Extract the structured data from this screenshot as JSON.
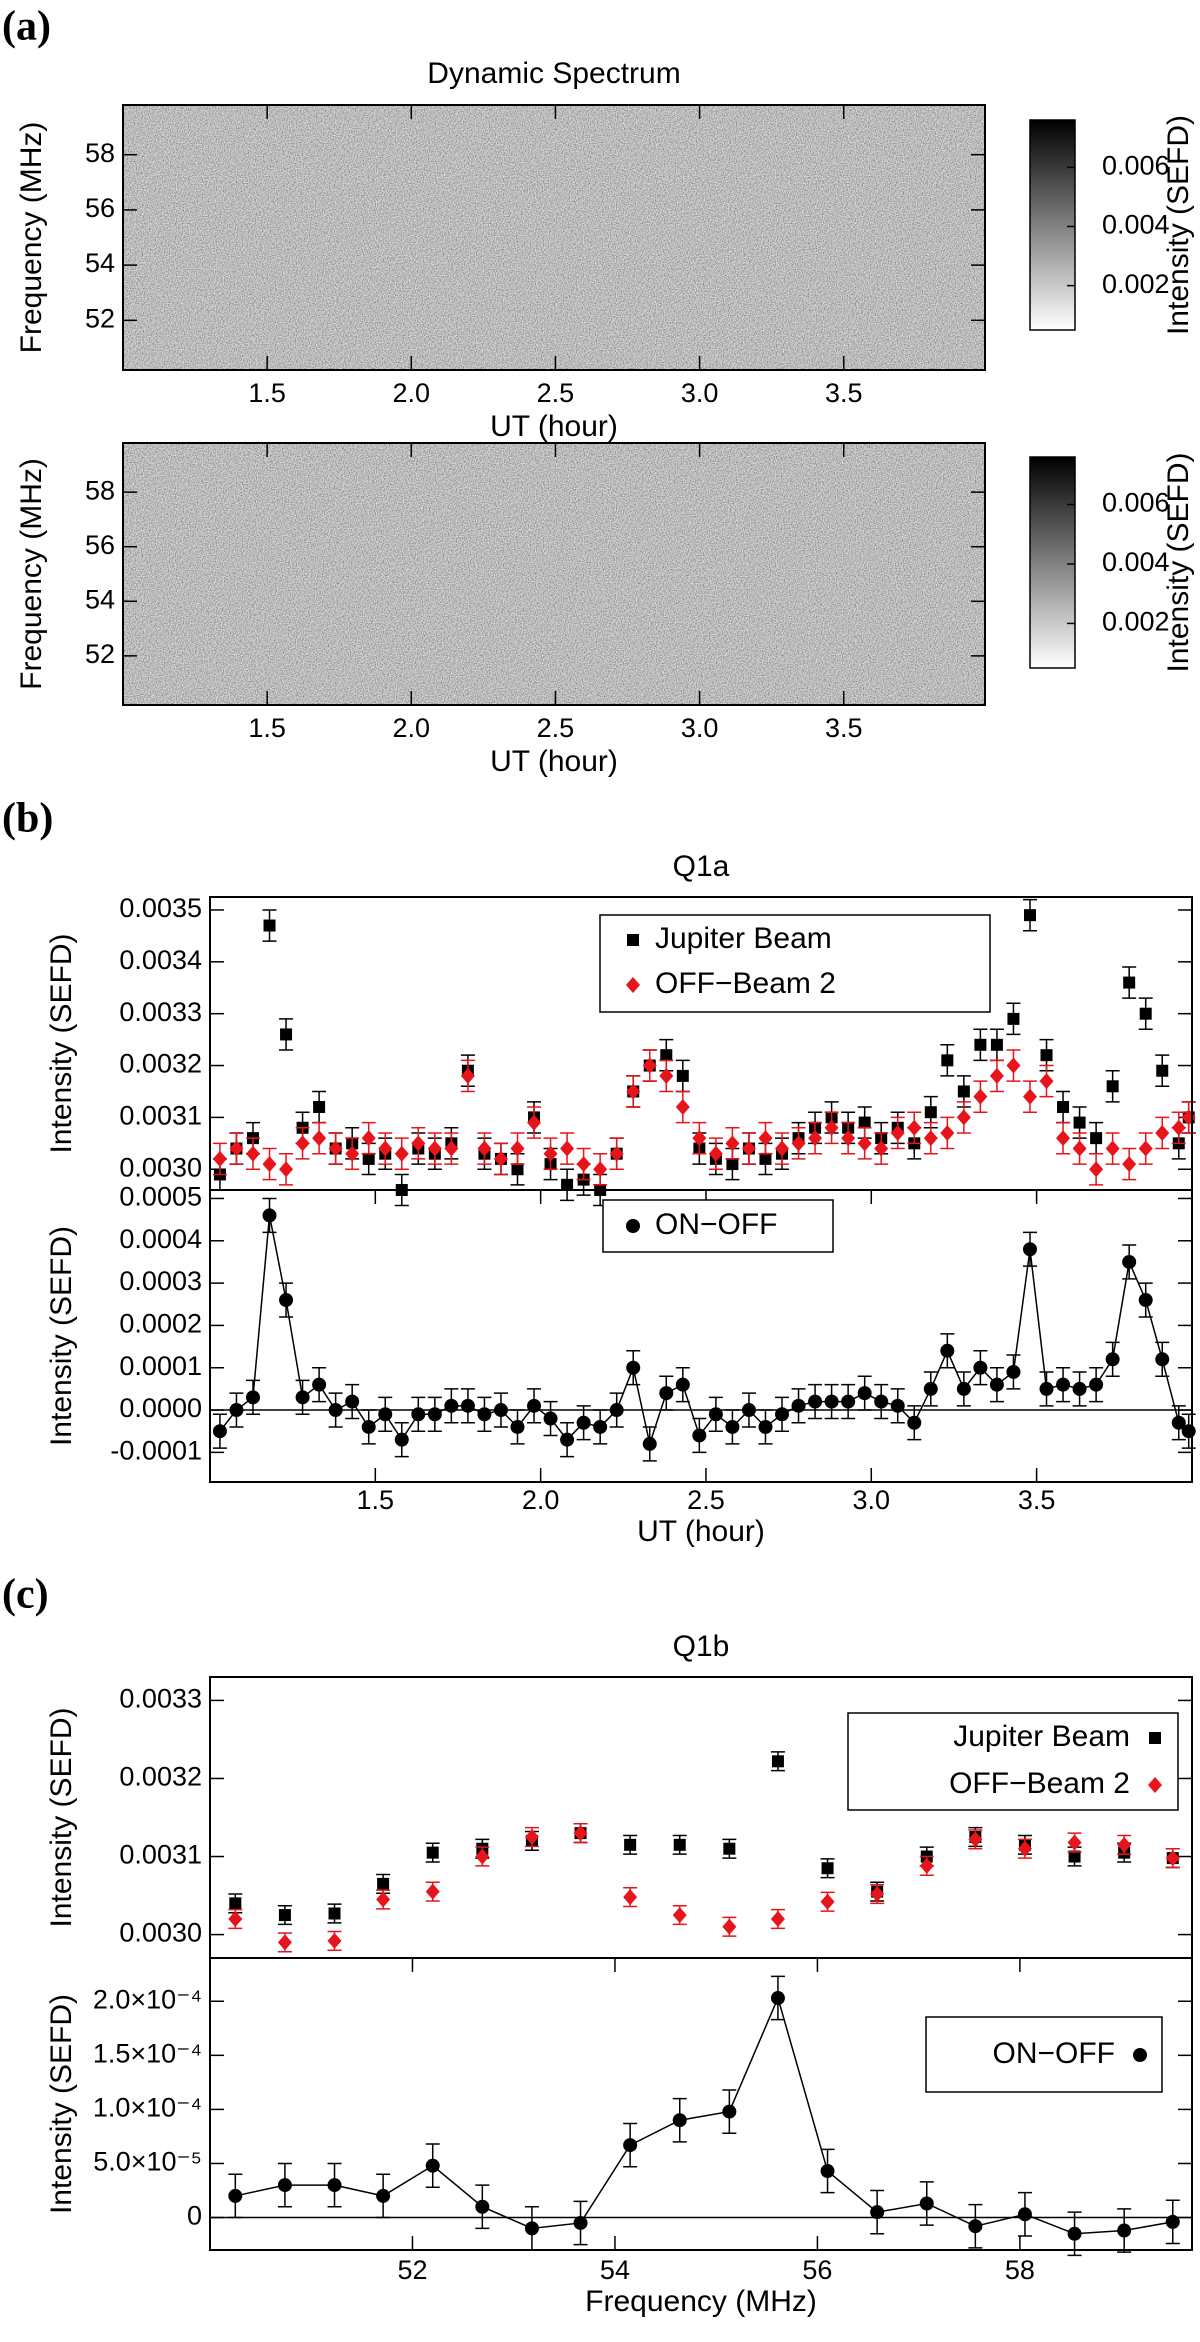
{
  "chart_data": [
    {
      "type": "heatmap",
      "label": "(a)",
      "title": "Dynamic Spectrum",
      "xlabel": "UT (hour)",
      "ylabel": "Frequency (MHz)",
      "colorbar_label": "Intensity (SEFD)",
      "xlim": [
        1.0,
        3.99
      ],
      "xticks": [
        1.5,
        {
          "value": 2.0,
          "label": "2.0"
        },
        2.5,
        {
          "value": 3.0,
          "label": "3.0"
        },
        3.5
      ],
      "ylim": [
        50.2,
        59.8
      ],
      "yticks": [
        52,
        54,
        56,
        58
      ],
      "clim": [
        0.0005,
        0.0076
      ],
      "cticks": [
        0.002,
        0.004,
        0.006
      ]
    },
    {
      "type": "heatmap",
      "xlabel": "UT (hour)",
      "ylabel": "Frequency (MHz)",
      "colorbar_label": "Intensity (SEFD)",
      "xlim": [
        1.0,
        3.99
      ],
      "xticks": [
        1.5,
        {
          "value": 2.0,
          "label": "2.0"
        },
        2.5,
        {
          "value": 3.0,
          "label": "3.0"
        },
        3.5
      ],
      "ylim": [
        50.2,
        59.8
      ],
      "yticks": [
        52,
        54,
        56,
        58
      ],
      "clim": [
        0.0005,
        0.0076
      ],
      "cticks": [
        0.002,
        0.004,
        0.006
      ]
    },
    {
      "type": "scatter",
      "label": "(b)",
      "title": "Q1a",
      "ylabel": "Intensity (SEFD)",
      "legend": "upper center",
      "xlim": [
        1.0,
        3.97
      ],
      "ylim": [
        0.00296,
        0.003525
      ],
      "yticks": [
        {
          "value": 0.003,
          "label": "0.0030"
        },
        0.0031,
        0.0032,
        0.0033,
        0.0034,
        0.0035
      ],
      "x": [
        1.03,
        1.08,
        1.13,
        1.18,
        1.23,
        1.28,
        1.33,
        1.38,
        1.43,
        1.48,
        1.53,
        1.58,
        1.63,
        1.68,
        1.73,
        1.78,
        1.83,
        1.88,
        1.93,
        1.98,
        2.03,
        2.08,
        2.13,
        2.18,
        2.23,
        2.28,
        2.33,
        2.38,
        2.43,
        2.48,
        2.53,
        2.58,
        2.63,
        2.68,
        2.73,
        2.78,
        2.83,
        2.88,
        2.93,
        2.98,
        3.03,
        3.08,
        3.13,
        3.18,
        3.23,
        3.28,
        3.33,
        3.38,
        3.43,
        3.48,
        3.53,
        3.58,
        3.63,
        3.68,
        3.73,
        3.78,
        3.83,
        3.88,
        3.93,
        3.96
      ],
      "series": [
        {
          "name": "Jupiter Beam",
          "color": "#000000",
          "marker": "square",
          "error": 3e-05,
          "values": [
            0.00299,
            0.00304,
            0.00306,
            0.00347,
            0.00326,
            0.00308,
            0.00312,
            0.00304,
            0.00305,
            0.00302,
            0.00303,
            0.00296,
            0.00304,
            0.00303,
            0.00305,
            0.00319,
            0.00303,
            0.00302,
            0.003,
            0.0031,
            0.00301,
            0.00297,
            0.00298,
            0.00296,
            0.00303,
            0.00315,
            0.0032,
            0.00322,
            0.00318,
            0.00304,
            0.00302,
            0.00301,
            0.00304,
            0.00302,
            0.00303,
            0.00306,
            0.00308,
            0.0031,
            0.00308,
            0.00309,
            0.00306,
            0.00308,
            0.00305,
            0.00311,
            0.00321,
            0.00315,
            0.00324,
            0.00324,
            0.00329,
            0.00349,
            0.00322,
            0.00312,
            0.00309,
            0.00306,
            0.00316,
            0.00336,
            0.0033,
            0.00319,
            0.00305,
            0.0031
          ]
        },
        {
          "name": "OFF−Beam 2",
          "color": "#e8141b",
          "marker": "diamond",
          "error": 3e-05,
          "values": [
            0.00302,
            0.00304,
            0.00303,
            0.00301,
            0.003,
            0.00305,
            0.00306,
            0.00304,
            0.00303,
            0.00306,
            0.00304,
            0.00303,
            0.00305,
            0.00304,
            0.00304,
            0.00318,
            0.00304,
            0.00302,
            0.00304,
            0.00309,
            0.00303,
            0.00304,
            0.00301,
            0.003,
            0.00303,
            0.00315,
            0.0032,
            0.00318,
            0.00312,
            0.00306,
            0.00303,
            0.00305,
            0.00304,
            0.00306,
            0.00304,
            0.00305,
            0.00306,
            0.00308,
            0.00306,
            0.00305,
            0.00304,
            0.00307,
            0.00308,
            0.00306,
            0.00307,
            0.0031,
            0.00314,
            0.00318,
            0.0032,
            0.00314,
            0.00317,
            0.00306,
            0.00304,
            0.003,
            0.00304,
            0.00301,
            0.00304,
            0.00307,
            0.00308,
            0.0031
          ]
        }
      ]
    },
    {
      "type": "scatter",
      "xlabel": "UT (hour)",
      "ylabel": "Intensity (SEFD)",
      "legend": "upper center",
      "zero_line": true,
      "xlim": [
        1.0,
        3.97
      ],
      "xticks": [
        1.5,
        {
          "value": 2.0,
          "label": "2.0"
        },
        2.5,
        {
          "value": 3.0,
          "label": "3.0"
        },
        3.5
      ],
      "ylim": [
        -0.00017,
        0.00052
      ],
      "yticks": [
        {
          "value": -0.0001,
          "label": "-0.0001"
        },
        {
          "value": 0,
          "label": "0.0000"
        },
        0.0001,
        0.0002,
        0.0003,
        0.0004,
        0.0005
      ],
      "x": [
        1.03,
        1.08,
        1.13,
        1.18,
        1.23,
        1.28,
        1.33,
        1.38,
        1.43,
        1.48,
        1.53,
        1.58,
        1.63,
        1.68,
        1.73,
        1.78,
        1.83,
        1.88,
        1.93,
        1.98,
        2.03,
        2.08,
        2.13,
        2.18,
        2.23,
        2.28,
        2.33,
        2.38,
        2.43,
        2.48,
        2.53,
        2.58,
        2.63,
        2.68,
        2.73,
        2.78,
        2.83,
        2.88,
        2.93,
        2.98,
        3.03,
        3.08,
        3.13,
        3.18,
        3.23,
        3.28,
        3.33,
        3.38,
        3.43,
        3.48,
        3.53,
        3.58,
        3.63,
        3.68,
        3.73,
        3.78,
        3.83,
        3.88,
        3.93,
        3.96
      ],
      "series": [
        {
          "name": "ON−OFF",
          "color": "#000000",
          "marker": "circle",
          "line": true,
          "error": 4e-05,
          "values": [
            -5e-05,
            0,
            3e-05,
            0.00046,
            0.00026,
            3e-05,
            6e-05,
            0,
            2e-05,
            -4e-05,
            -1e-05,
            -7e-05,
            -1e-05,
            -1e-05,
            1e-05,
            1e-05,
            -1e-05,
            0,
            -4e-05,
            1e-05,
            -2e-05,
            -7e-05,
            -3e-05,
            -4e-05,
            0,
            0.0001,
            -8e-05,
            4e-05,
            6e-05,
            -6e-05,
            -1e-05,
            -4e-05,
            0,
            -4e-05,
            -1e-05,
            1e-05,
            2e-05,
            2e-05,
            2e-05,
            4e-05,
            2e-05,
            1e-05,
            -3e-05,
            5e-05,
            0.00014,
            5e-05,
            0.0001,
            6e-05,
            9e-05,
            0.00038,
            5e-05,
            6e-05,
            5e-05,
            6e-05,
            0.00012,
            0.00035,
            0.00026,
            0.00012,
            -3e-05,
            -5e-05
          ]
        }
      ]
    },
    {
      "type": "scatter",
      "label": "(c)",
      "title": "Q1b",
      "ylabel": "Intensity (SEFD)",
      "legend": "upper right",
      "xlim": [
        50.0,
        59.7
      ],
      "ylim": [
        0.00297,
        0.00333
      ],
      "yticks": [
        {
          "value": 0.003,
          "label": "0.0030"
        },
        0.0031,
        0.0032,
        0.0033
      ],
      "x": [
        50.25,
        50.74,
        51.23,
        51.71,
        52.2,
        52.69,
        53.18,
        53.66,
        54.15,
        54.64,
        55.13,
        55.61,
        56.1,
        56.59,
        57.08,
        57.56,
        58.05,
        58.54,
        59.03,
        59.51
      ],
      "series": [
        {
          "name": "Jupiter Beam",
          "color": "#000000",
          "marker": "square",
          "error": 1.2e-05,
          "values": [
            0.00304,
            0.003025,
            0.003027,
            0.003065,
            0.003105,
            0.00311,
            0.00312,
            0.00313,
            0.003115,
            0.003115,
            0.00311,
            0.003222,
            0.003085,
            0.003055,
            0.0031,
            0.003125,
            0.003115,
            0.0031,
            0.003105,
            0.003098
          ]
        },
        {
          "name": "OFF−Beam 2",
          "color": "#e8141b",
          "marker": "diamond",
          "error": 1.2e-05,
          "values": [
            0.00302,
            0.00299,
            0.002992,
            0.003045,
            0.003055,
            0.0031,
            0.003125,
            0.00313,
            0.003048,
            0.003025,
            0.00301,
            0.00302,
            0.003042,
            0.003052,
            0.003088,
            0.003122,
            0.00311,
            0.003118,
            0.003115,
            0.003098
          ]
        }
      ]
    },
    {
      "type": "scatter",
      "xlabel": "Frequency (MHz)",
      "ylabel": "Intensity (SEFD)",
      "legend": "upper right",
      "zero_line": true,
      "xlim": [
        50.0,
        59.7
      ],
      "xticks": [
        52,
        54,
        56,
        58
      ],
      "ylim": [
        -3e-05,
        0.00024
      ],
      "yticks": [
        0,
        {
          "value": 5e-05,
          "label": "5.0×10⁻⁵"
        },
        {
          "value": 0.0001,
          "label": "1.0×10⁻⁴"
        },
        {
          "value": 0.00015,
          "label": "1.5×10⁻⁴"
        },
        {
          "value": 0.0002,
          "label": "2.0×10⁻⁴"
        }
      ],
      "x": [
        50.25,
        50.74,
        51.23,
        51.71,
        52.2,
        52.69,
        53.18,
        53.66,
        54.15,
        54.64,
        55.13,
        55.61,
        56.1,
        56.59,
        57.08,
        57.56,
        58.05,
        58.54,
        59.03,
        59.51
      ],
      "series": [
        {
          "name": "ON−OFF",
          "color": "#000000",
          "marker": "circle",
          "line": true,
          "error": 2e-05,
          "values": [
            2e-05,
            3e-05,
            3e-05,
            2e-05,
            4.8e-05,
            1e-05,
            -1e-05,
            -5e-06,
            6.7e-05,
            9e-05,
            9.8e-05,
            0.000203,
            4.3e-05,
            5e-06,
            1.3e-05,
            -8e-06,
            3e-06,
            -1.5e-05,
            -1.2e-05,
            -4e-06
          ]
        }
      ]
    }
  ]
}
